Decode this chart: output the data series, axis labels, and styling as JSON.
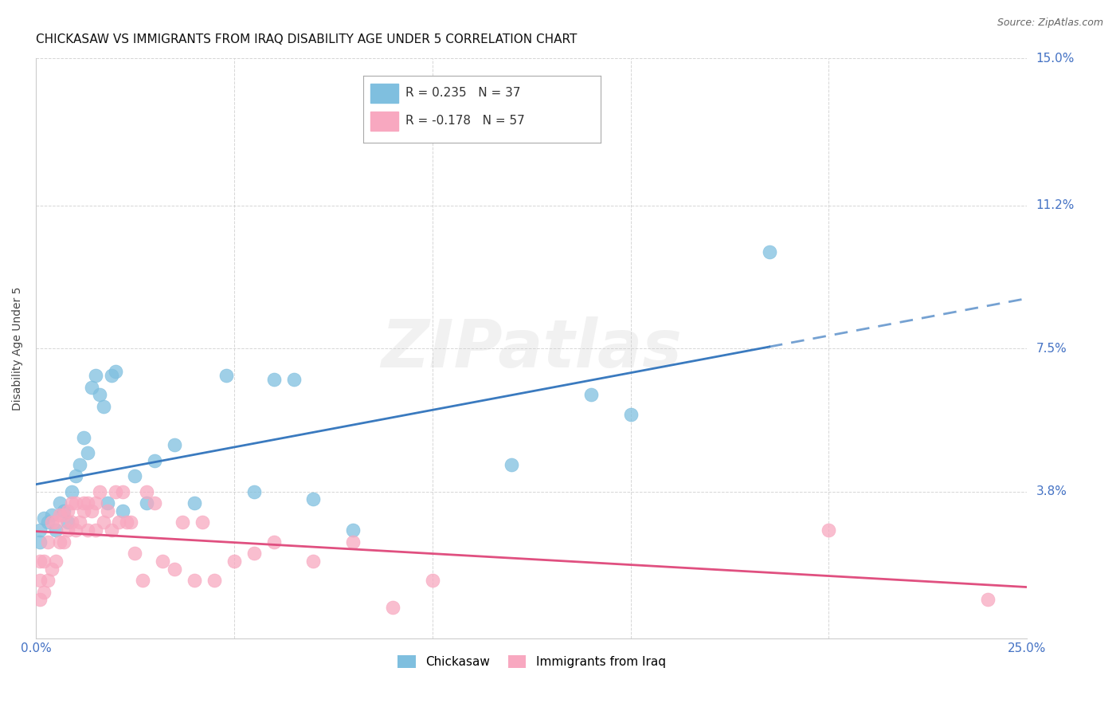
{
  "title": "CHICKASAW VS IMMIGRANTS FROM IRAQ DISABILITY AGE UNDER 5 CORRELATION CHART",
  "source": "Source: ZipAtlas.com",
  "ylabel": "Disability Age Under 5",
  "xlim": [
    0.0,
    0.25
  ],
  "ylim": [
    0.0,
    0.15
  ],
  "xticks": [
    0.0,
    0.05,
    0.1,
    0.15,
    0.2,
    0.25
  ],
  "xticklabels_show": [
    "0.0%",
    "",
    "",
    "",
    "",
    "25.0%"
  ],
  "ytick_values": [
    0.0,
    0.038,
    0.075,
    0.112,
    0.15
  ],
  "ytick_labels": [
    "",
    "3.8%",
    "7.5%",
    "11.2%",
    "15.0%"
  ],
  "grid_color": "#cccccc",
  "background_color": "#ffffff",
  "watermark_text": "ZIPatlas",
  "series": [
    {
      "name": "Chickasaw",
      "color": "#7fbfdf",
      "line_color": "#3a7abf",
      "x": [
        0.001,
        0.001,
        0.002,
        0.003,
        0.004,
        0.005,
        0.006,
        0.007,
        0.008,
        0.009,
        0.01,
        0.011,
        0.012,
        0.013,
        0.014,
        0.015,
        0.016,
        0.017,
        0.018,
        0.019,
        0.02,
        0.022,
        0.025,
        0.028,
        0.03,
        0.035,
        0.04,
        0.048,
        0.055,
        0.06,
        0.065,
        0.07,
        0.08,
        0.12,
        0.14,
        0.15,
        0.185
      ],
      "y": [
        0.025,
        0.028,
        0.031,
        0.03,
        0.032,
        0.028,
        0.035,
        0.033,
        0.03,
        0.038,
        0.042,
        0.045,
        0.052,
        0.048,
        0.065,
        0.068,
        0.063,
        0.06,
        0.035,
        0.068,
        0.069,
        0.033,
        0.042,
        0.035,
        0.046,
        0.05,
        0.035,
        0.068,
        0.038,
        0.067,
        0.067,
        0.036,
        0.028,
        0.045,
        0.063,
        0.058,
        0.1
      ]
    },
    {
      "name": "Immigrants from Iraq",
      "color": "#f8a8c0",
      "line_color": "#e05080",
      "x": [
        0.001,
        0.001,
        0.001,
        0.002,
        0.002,
        0.003,
        0.003,
        0.004,
        0.004,
        0.005,
        0.005,
        0.006,
        0.006,
        0.007,
        0.007,
        0.008,
        0.008,
        0.009,
        0.009,
        0.01,
        0.01,
        0.011,
        0.012,
        0.012,
        0.013,
        0.013,
        0.014,
        0.015,
        0.015,
        0.016,
        0.017,
        0.018,
        0.019,
        0.02,
        0.021,
        0.022,
        0.023,
        0.024,
        0.025,
        0.027,
        0.028,
        0.03,
        0.032,
        0.035,
        0.037,
        0.04,
        0.042,
        0.045,
        0.05,
        0.055,
        0.06,
        0.07,
        0.08,
        0.09,
        0.1,
        0.2,
        0.24
      ],
      "y": [
        0.01,
        0.015,
        0.02,
        0.012,
        0.02,
        0.015,
        0.025,
        0.018,
        0.03,
        0.02,
        0.03,
        0.025,
        0.032,
        0.025,
        0.032,
        0.028,
        0.033,
        0.03,
        0.035,
        0.028,
        0.035,
        0.03,
        0.033,
        0.035,
        0.028,
        0.035,
        0.033,
        0.028,
        0.035,
        0.038,
        0.03,
        0.033,
        0.028,
        0.038,
        0.03,
        0.038,
        0.03,
        0.03,
        0.022,
        0.015,
        0.038,
        0.035,
        0.02,
        0.018,
        0.03,
        0.015,
        0.03,
        0.015,
        0.02,
        0.022,
        0.025,
        0.02,
        0.025,
        0.008,
        0.015,
        0.028,
        0.01
      ]
    }
  ],
  "legend_labels": [
    "Chickasaw",
    "Immigrants from Iraq"
  ],
  "corr_legend": [
    {
      "r": "0.235",
      "n": "37",
      "color": "#7fbfdf"
    },
    {
      "r": "-0.178",
      "n": "57",
      "color": "#f8a8c0"
    }
  ],
  "title_fontsize": 11,
  "axis_label_fontsize": 10,
  "tick_fontsize": 11,
  "legend_fontsize": 11
}
